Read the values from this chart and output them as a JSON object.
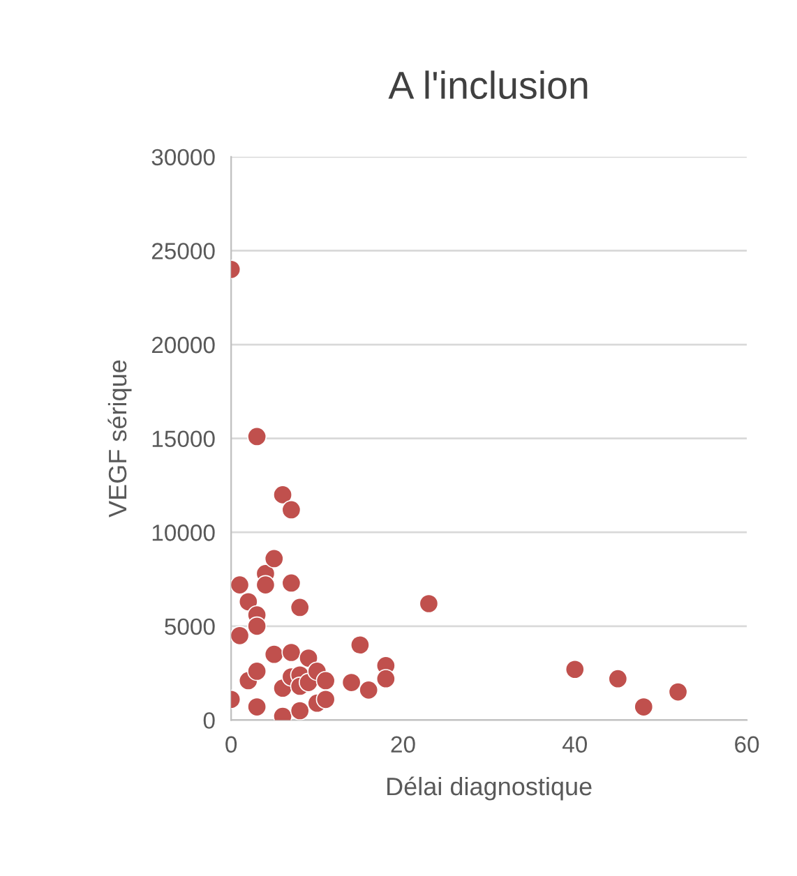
{
  "chart_data": {
    "type": "scatter",
    "title": "A l'inclusion",
    "xlabel": "Délai diagnostique",
    "ylabel": "VEGF sérique",
    "x": [
      0,
      0,
      1,
      1,
      2,
      2,
      3,
      3,
      3,
      3,
      3,
      4,
      4,
      5,
      5,
      6,
      6,
      6,
      7,
      7,
      7,
      7,
      8,
      8,
      8,
      8,
      9,
      9,
      10,
      10,
      11,
      11,
      14,
      15,
      16,
      18,
      18,
      23,
      40,
      45,
      48,
      52
    ],
    "series": [
      {
        "color": "#c0504d",
        "values": [
          24000,
          1100,
          7200,
          4500,
          6300,
          2100,
          15100,
          5600,
          5000,
          2600,
          700,
          7800,
          7200,
          8600,
          3500,
          12000,
          1700,
          200,
          11200,
          7300,
          3600,
          2300,
          6000,
          2400,
          1800,
          500,
          3300,
          2000,
          2600,
          900,
          2100,
          1100,
          2000,
          4000,
          1600,
          2900,
          2200,
          6200,
          2700,
          2200,
          700,
          1500
        ]
      }
    ],
    "xlim": [
      0,
      60
    ],
    "xticks": [
      0,
      20,
      40,
      60
    ],
    "ylim": [
      0,
      30000
    ],
    "yticks": [
      0,
      5000,
      10000,
      15000,
      20000,
      25000,
      30000
    ],
    "grid": "y",
    "marker": "circle",
    "legend": false
  }
}
